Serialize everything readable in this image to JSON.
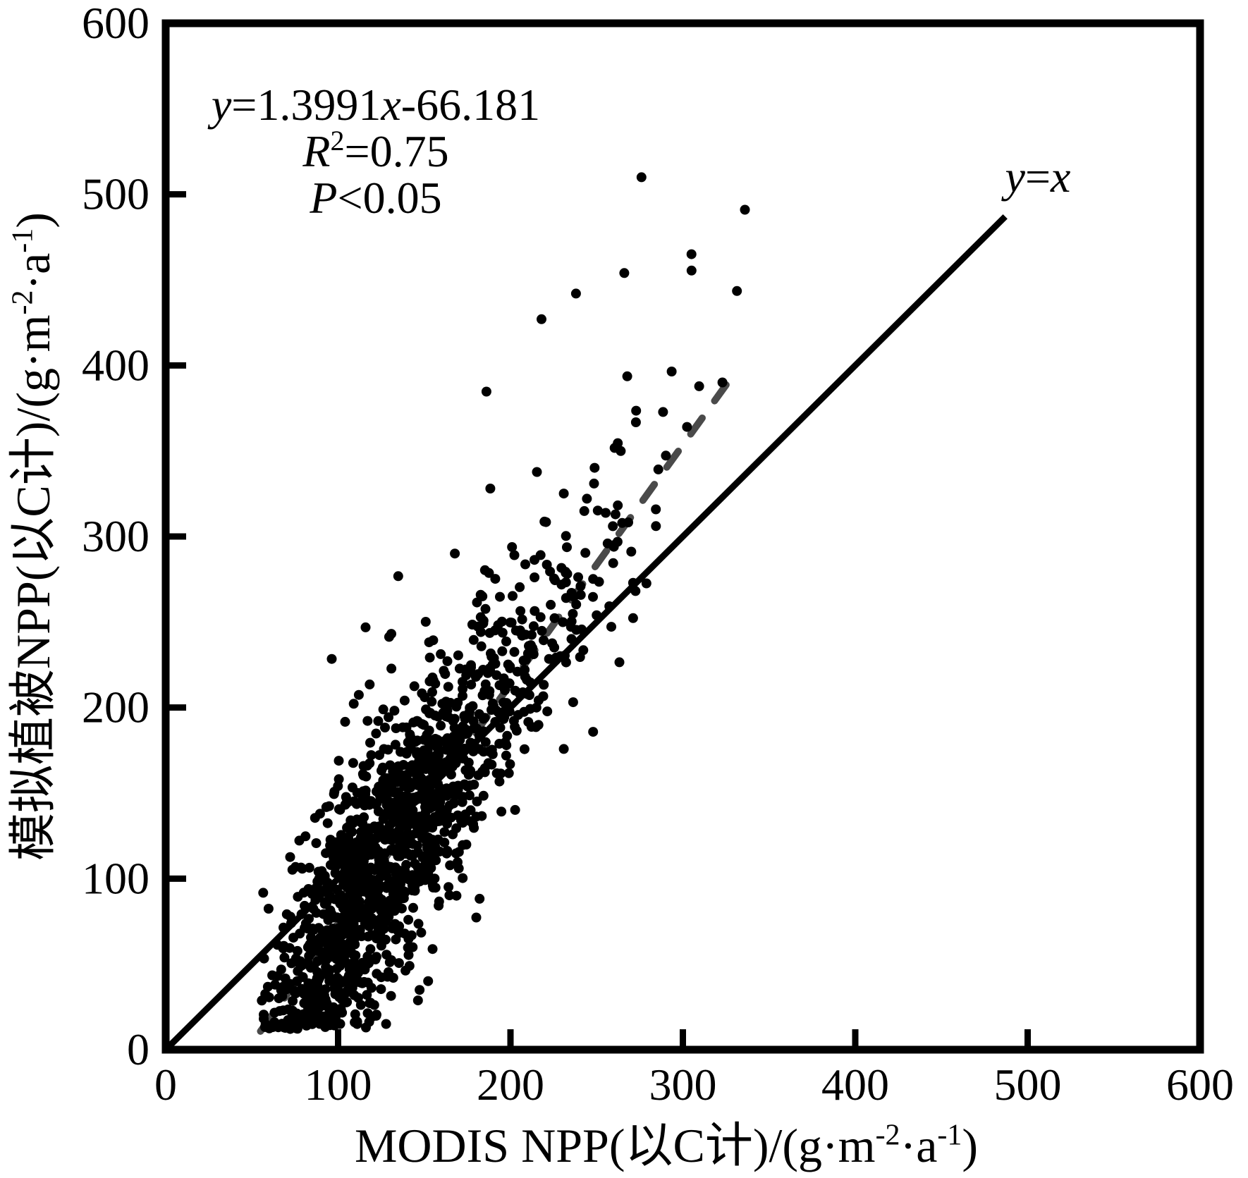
{
  "figure": {
    "background": "#ffffff",
    "description": "Scatter plot validating simulated vegetation NPP against MODIS NPP"
  },
  "chart_data": {
    "type": "scatter",
    "title": "",
    "xlabel": "MODIS NPP(以C计)/(g·m⁻²·a⁻¹)",
    "ylabel": "模拟植被NPP(以C计)/(g·m⁻²·a⁻¹)",
    "xlabel_parts": [
      {
        "t": "MODIS NPP(以C计)/(g·m"
      },
      {
        "t": "-2",
        "sup": true
      },
      {
        "t": "·a"
      },
      {
        "t": "-1",
        "sup": true
      },
      {
        "t": ")"
      }
    ],
    "ylabel_parts": [
      {
        "t": "模拟植被NPP(以C计)/(g·m"
      },
      {
        "t": "-2",
        "sup": true
      },
      {
        "t": "·a"
      },
      {
        "t": "-1",
        "sup": true
      },
      {
        "t": ")"
      }
    ],
    "xlim": [
      0,
      600
    ],
    "ylim": [
      0,
      600
    ],
    "xticks": [
      0,
      100,
      200,
      300,
      400,
      500,
      600
    ],
    "yticks": [
      0,
      100,
      200,
      300,
      400,
      500,
      600
    ],
    "grid": false,
    "legend": "none",
    "axis_color": "#000000",
    "point_color": "#000000",
    "annotation": {
      "equation": "y=1.3991x-66.181",
      "r_squared": "R²=0.75",
      "p_value": "P<0.05",
      "lines_parts": [
        [
          {
            "t": "y",
            "i": true
          },
          {
            "t": "=1.3991"
          },
          {
            "t": "x",
            "i": true
          },
          {
            "t": "-66.181"
          }
        ],
        [
          {
            "t": "R",
            "i": true
          },
          {
            "t": "2",
            "sup": true
          },
          {
            "t": "=0.75"
          }
        ],
        [
          {
            "t": "P",
            "i": true
          },
          {
            "t": "<0.05"
          }
        ]
      ]
    },
    "regression_line": {
      "slope": 1.3991,
      "intercept": -66.181,
      "r2": 0.75,
      "x_start": 55,
      "x_end": 330,
      "style": "dashed",
      "color": "#4a4a4a"
    },
    "identity_line": {
      "label": "y=x",
      "label_parts": [
        {
          "t": "y",
          "i": true
        },
        {
          "t": "="
        },
        {
          "t": "x",
          "i": true
        }
      ],
      "x_start": 0,
      "x_end": 487,
      "style": "solid",
      "color": "#000000"
    },
    "scatter": {
      "n": 1500,
      "seed": 20,
      "x_log_mean": 4.86,
      "x_log_sd": 0.34,
      "x_min": 55,
      "x_max": 332,
      "noise_sd": 37,
      "big_dev_prob": 0.02,
      "big_dev_min": 55,
      "big_dev_max": 150,
      "y_min": 12,
      "y_max": 512,
      "point_radius": 7,
      "extra_points": [
        [
          276,
          510
        ],
        [
          336,
          491
        ],
        [
          305,
          465
        ],
        [
          266,
          454
        ],
        [
          238,
          442
        ],
        [
          218,
          427
        ]
      ]
    }
  }
}
